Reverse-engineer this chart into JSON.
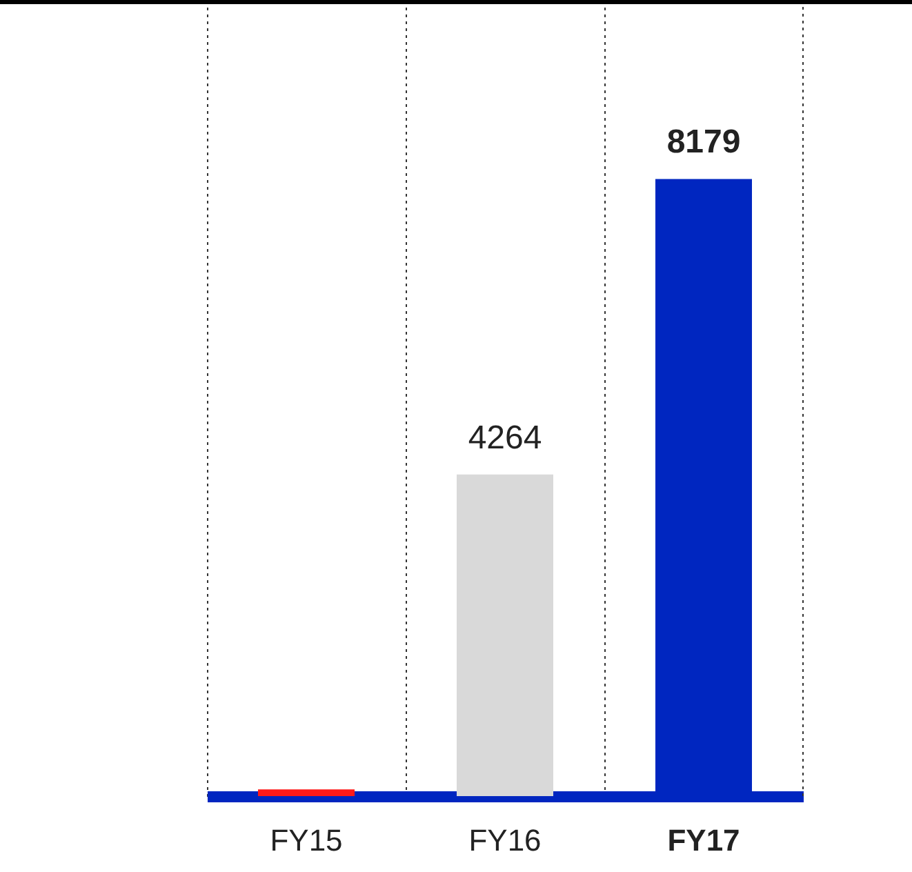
{
  "chart_data": {
    "type": "bar",
    "categories": [
      "FY15",
      "FY16",
      "FY17"
    ],
    "values": [
      90,
      4264,
      8179
    ],
    "value_labels": [
      null,
      "4264",
      "8179"
    ],
    "colors": [
      "#ff1a1a",
      "#d9d9d9",
      "#0026c0"
    ],
    "grid": "x",
    "line_style": "dotted"
  }
}
